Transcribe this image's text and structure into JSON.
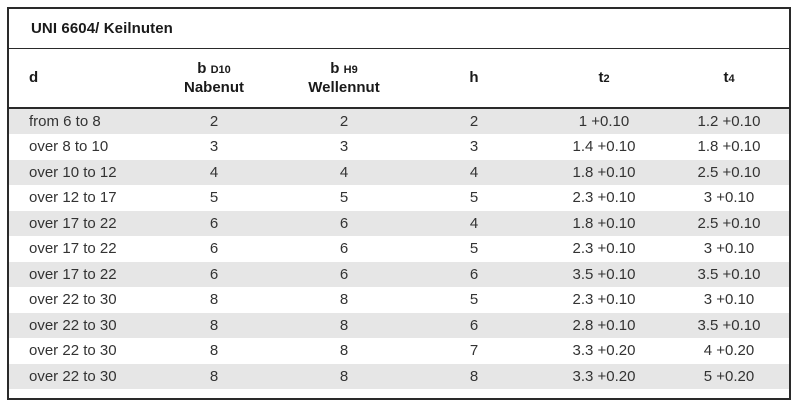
{
  "title": "UNI 6604/ Keilnuten",
  "columns": {
    "d": "d",
    "b_nabenut_main": "b",
    "b_nabenut_sub": "D10",
    "b_nabenut_label": "Nabenut",
    "b_wellennut_main": "b",
    "b_wellennut_sub": "H9",
    "b_wellennut_label": "Wellennut",
    "h": "h",
    "t2_main": "t",
    "t2_sub": "2",
    "t4_main": "t",
    "t4_sub": "4"
  },
  "rows": [
    {
      "d": "from 6  to 8",
      "b_nabenut": "2",
      "b_wellennut": "2",
      "h": "2",
      "t2": "1 +0.10",
      "t4": "1.2 +0.10"
    },
    {
      "d": "over 8  to 10",
      "b_nabenut": "3",
      "b_wellennut": "3",
      "h": "3",
      "t2": "1.4 +0.10",
      "t4": "1.8 +0.10"
    },
    {
      "d": "over 10  to 12",
      "b_nabenut": "4",
      "b_wellennut": "4",
      "h": "4",
      "t2": "1.8 +0.10",
      "t4": "2.5 +0.10"
    },
    {
      "d": "over 12  to 17",
      "b_nabenut": "5",
      "b_wellennut": "5",
      "h": "5",
      "t2": "2.3 +0.10",
      "t4": "3 +0.10"
    },
    {
      "d": "over 17  to 22",
      "b_nabenut": "6",
      "b_wellennut": "6",
      "h": "4",
      "t2": "1.8 +0.10",
      "t4": "2.5 +0.10"
    },
    {
      "d": "over 17  to 22",
      "b_nabenut": "6",
      "b_wellennut": "6",
      "h": "5",
      "t2": "2.3 +0.10",
      "t4": "3 +0.10"
    },
    {
      "d": "over 17  to 22",
      "b_nabenut": "6",
      "b_wellennut": "6",
      "h": "6",
      "t2": "3.5 +0.10",
      "t4": "3.5 +0.10"
    },
    {
      "d": "over 22  to 30",
      "b_nabenut": "8",
      "b_wellennut": "8",
      "h": "5",
      "t2": "2.3 +0.10",
      "t4": "3 +0.10"
    },
    {
      "d": "over 22  to 30",
      "b_nabenut": "8",
      "b_wellennut": "8",
      "h": "6",
      "t2": "2.8 +0.10",
      "t4": "3.5 +0.10"
    },
    {
      "d": "over 22  to 30",
      "b_nabenut": "8",
      "b_wellennut": "8",
      "h": "7",
      "t2": "3.3 +0.20",
      "t4": "4 +0.20"
    },
    {
      "d": "over 22  to 30",
      "b_nabenut": "8",
      "b_wellennut": "8",
      "h": "8",
      "t2": "3.3 +0.20",
      "t4": "5 +0.20"
    }
  ]
}
